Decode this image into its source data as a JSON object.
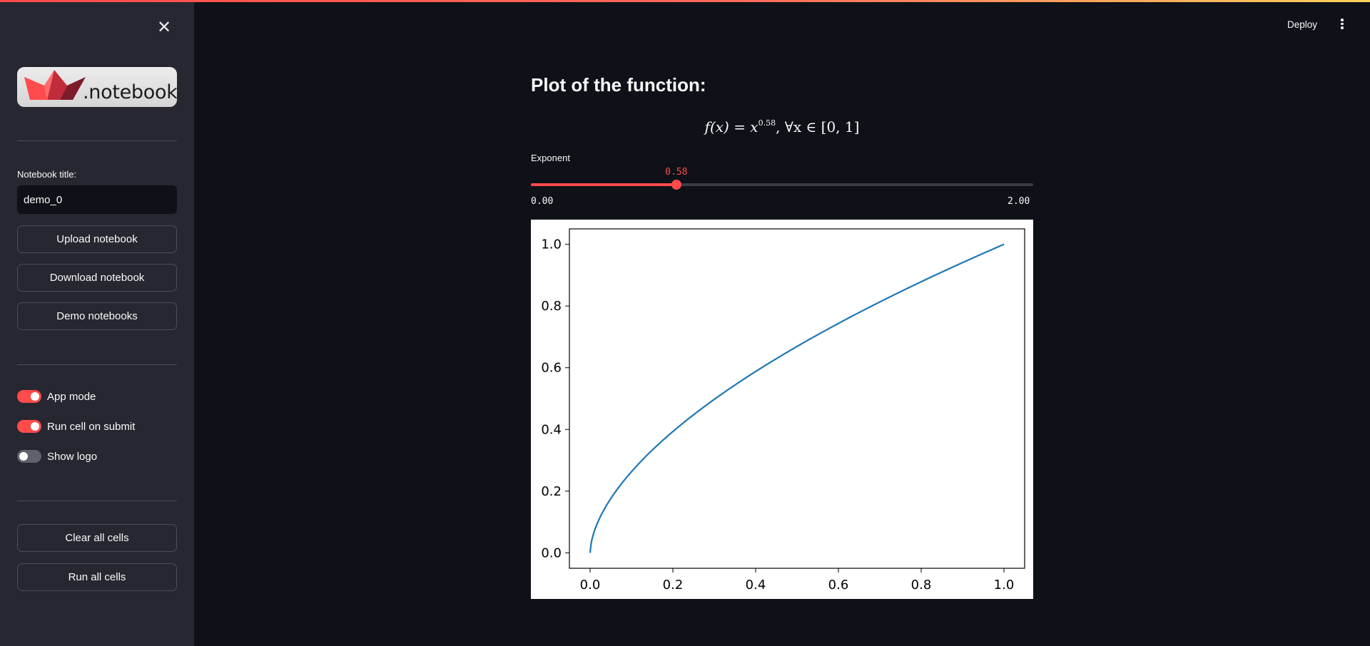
{
  "sidebar": {
    "logo_text": ".notebook",
    "notebook_title_label": "Notebook title:",
    "notebook_title_value": "demo_0",
    "buttons": {
      "upload": "Upload notebook",
      "download": "Download notebook",
      "demo": "Demo notebooks",
      "clear": "Clear all cells",
      "run": "Run all cells"
    },
    "toggles": [
      {
        "label": "App mode",
        "on": true
      },
      {
        "label": "Run cell on submit",
        "on": true
      },
      {
        "label": "Show logo",
        "on": false
      }
    ]
  },
  "header": {
    "deploy_label": "Deploy"
  },
  "main": {
    "heading": "Plot of the function:",
    "formula": {
      "lhs": "f(x) = x",
      "exponent": "0.58",
      "rhs": ", ∀x ∈ [0, 1]"
    },
    "slider": {
      "label": "Exponent",
      "value": 0.58,
      "value_text": "0.58",
      "min": 0,
      "max": 2,
      "min_text": "0.00",
      "max_text": "2.00"
    }
  },
  "colors": {
    "accent": "#ff4b4b",
    "sidebar_bg": "#262730",
    "main_bg": "#0e1117",
    "line": "#1f77b4"
  },
  "chart_data": {
    "type": "line",
    "function": "x^0.58",
    "exponent": 0.58,
    "x_domain": [
      0,
      1
    ],
    "xlim": [
      -0.05,
      1.05
    ],
    "ylim": [
      -0.05,
      1.05
    ],
    "x_ticks": [
      "0.0",
      "0.2",
      "0.4",
      "0.6",
      "0.8",
      "1.0"
    ],
    "y_ticks": [
      "0.0",
      "0.2",
      "0.4",
      "0.6",
      "0.8",
      "1.0"
    ],
    "series": [
      {
        "x": [
          0.0,
          0.001,
          0.005,
          0.01,
          0.02,
          0.05,
          0.1,
          0.2,
          0.3,
          0.4,
          0.5,
          0.6,
          0.7,
          0.8,
          0.9,
          1.0
        ],
        "y": [
          0.0,
          0.018,
          0.046,
          0.069,
          0.103,
          0.176,
          0.263,
          0.393,
          0.497,
          0.588,
          0.669,
          0.743,
          0.813,
          0.879,
          0.941,
          1.0
        ]
      }
    ],
    "title": "",
    "xlabel": "",
    "ylabel": ""
  }
}
